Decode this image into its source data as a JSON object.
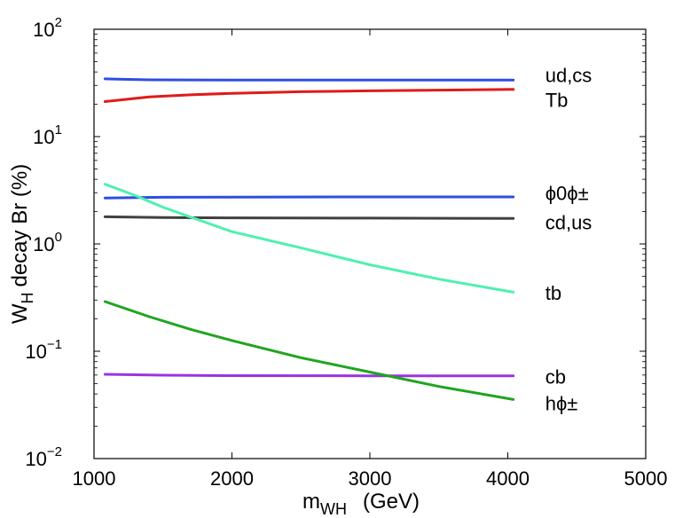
{
  "chart_data": {
    "type": "line",
    "y_scale": "log",
    "xlabel": "m_WH (GeV)",
    "xlabel_main": "m",
    "xlabel_sub": "WH",
    "xlabel_units": "(GeV)",
    "ylabel": "W_H decay Br (%)",
    "ylabel_main": "W",
    "ylabel_sub": "H",
    "ylabel_rest": "decay Br  (%)",
    "xlim": [
      1000,
      5000
    ],
    "ylim": [
      0.01,
      100
    ],
    "x_ticks": [
      1000,
      2000,
      3000,
      4000,
      5000
    ],
    "x_tick_labels": [
      "1000",
      "2000",
      "3000",
      "4000",
      "5000"
    ],
    "y_ticks": [
      {
        "value": 100,
        "base": "10",
        "exp": "2"
      },
      {
        "value": 10,
        "base": "10",
        "exp": "1"
      },
      {
        "value": 1,
        "base": "10",
        "exp": "0"
      },
      {
        "value": 0.1,
        "base": "10",
        "exp": "−1"
      },
      {
        "value": 0.01,
        "base": "10",
        "exp": "−2"
      }
    ],
    "series": [
      {
        "name": "ud,cs",
        "color": "#2c4fe0",
        "label_value": 37.5,
        "points": [
          [
            1080,
            34.5
          ],
          [
            1400,
            33.8
          ],
          [
            2000,
            33.6
          ],
          [
            3000,
            33.6
          ],
          [
            4040,
            33.7
          ]
        ]
      },
      {
        "name": "Tb",
        "color": "#e01a1a",
        "label_value": 22,
        "points": [
          [
            1080,
            21.2
          ],
          [
            1400,
            23.4
          ],
          [
            1700,
            24.5
          ],
          [
            2000,
            25.3
          ],
          [
            2500,
            26.2
          ],
          [
            3000,
            26.7
          ],
          [
            3500,
            27.1
          ],
          [
            4040,
            27.5
          ]
        ]
      },
      {
        "name": "ϕ0ϕ±",
        "color": "#2c4fe0",
        "label_value": 3.0,
        "points": [
          [
            1080,
            2.68
          ],
          [
            1500,
            2.72
          ],
          [
            2000,
            2.73
          ],
          [
            3000,
            2.74
          ],
          [
            4040,
            2.74
          ]
        ]
      },
      {
        "name": "cd,us",
        "color": "#404040",
        "label_value": 1.6,
        "points": [
          [
            1080,
            1.79
          ],
          [
            1500,
            1.76
          ],
          [
            2000,
            1.75
          ],
          [
            3000,
            1.74
          ],
          [
            4040,
            1.73
          ]
        ]
      },
      {
        "name": "tb",
        "color": "#4ff0b0",
        "label_value": 0.35,
        "points": [
          [
            1080,
            3.6
          ],
          [
            1300,
            2.82
          ],
          [
            1500,
            2.2
          ],
          [
            1700,
            1.78
          ],
          [
            2000,
            1.3
          ],
          [
            2500,
            0.92
          ],
          [
            3000,
            0.64
          ],
          [
            3500,
            0.47
          ],
          [
            4040,
            0.355
          ]
        ]
      },
      {
        "name": "cb",
        "color": "#9a34e0",
        "label_value": 0.058,
        "points": [
          [
            1080,
            0.061
          ],
          [
            1500,
            0.0598
          ],
          [
            2000,
            0.0592
          ],
          [
            3000,
            0.059
          ],
          [
            4040,
            0.0589
          ]
        ]
      },
      {
        "name": "hϕ±",
        "color": "#1fa51f",
        "label_value": 0.033,
        "points": [
          [
            1080,
            0.29
          ],
          [
            1400,
            0.21
          ],
          [
            1700,
            0.16
          ],
          [
            2000,
            0.126
          ],
          [
            2500,
            0.087
          ],
          [
            3000,
            0.064
          ],
          [
            3500,
            0.047
          ],
          [
            4040,
            0.0355
          ]
        ]
      }
    ]
  }
}
